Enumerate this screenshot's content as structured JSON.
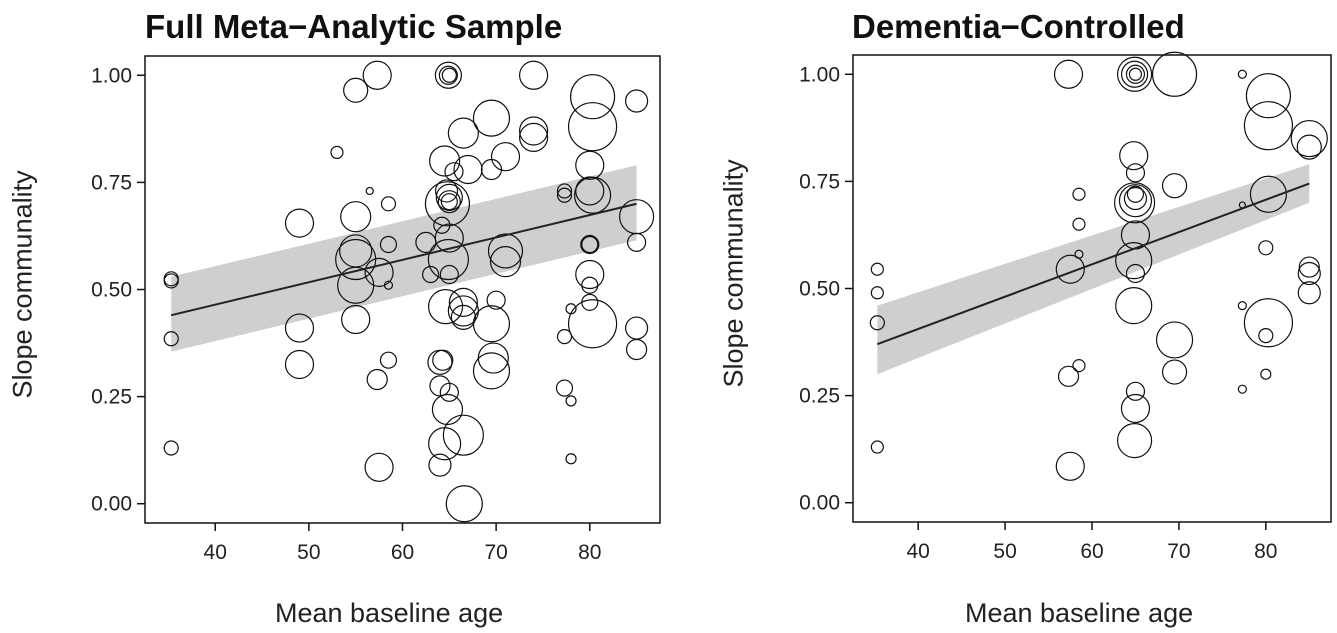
{
  "chart_data": [
    {
      "type": "scatter",
      "title": "Full Meta−Analytic Sample",
      "xlabel": "Mean baseline age",
      "ylabel": "Slope communality",
      "xlim": [
        32.5,
        87.5
      ],
      "ylim": [
        -0.045,
        1.045
      ],
      "xticks": [
        "40",
        "50",
        "60",
        "70",
        "80"
      ],
      "yticks": [
        "0.00",
        "0.25",
        "0.50",
        "0.75",
        "1.00"
      ],
      "grid": false,
      "legend": "none",
      "regression": {
        "x": [
          35.3,
          85
        ],
        "y": [
          0.44,
          0.7
        ],
        "ci_lower": [
          0.355,
          0.615
        ],
        "ci_upper": [
          0.53,
          0.79
        ]
      },
      "points": [
        {
          "x": 35.3,
          "y": 0.525,
          "w": 5
        },
        {
          "x": 35.3,
          "y": 0.52,
          "w": 5
        },
        {
          "x": 35.3,
          "y": 0.385,
          "w": 5
        },
        {
          "x": 35.3,
          "y": 0.13,
          "w": 5
        },
        {
          "x": 49,
          "y": 0.655,
          "w": 12
        },
        {
          "x": 49,
          "y": 0.41,
          "w": 12
        },
        {
          "x": 49,
          "y": 0.325,
          "w": 12
        },
        {
          "x": 53,
          "y": 0.82,
          "w": 4
        },
        {
          "x": 55,
          "y": 0.965,
          "w": 10
        },
        {
          "x": 55,
          "y": 0.67,
          "w": 13
        },
        {
          "x": 55,
          "y": 0.59,
          "w": 14
        },
        {
          "x": 55,
          "y": 0.57,
          "w": 18
        },
        {
          "x": 55,
          "y": 0.51,
          "w": 16
        },
        {
          "x": 55,
          "y": 0.43,
          "w": 12
        },
        {
          "x": 56.5,
          "y": 0.73,
          "w": 1.5
        },
        {
          "x": 57.3,
          "y": 1.0,
          "w": 12
        },
        {
          "x": 57.5,
          "y": 0.54,
          "w": 12
        },
        {
          "x": 57.3,
          "y": 0.29,
          "w": 8
        },
        {
          "x": 57.5,
          "y": 0.085,
          "w": 12
        },
        {
          "x": 58.5,
          "y": 0.7,
          "w": 5
        },
        {
          "x": 58.5,
          "y": 0.605,
          "w": 6
        },
        {
          "x": 58.5,
          "y": 0.51,
          "w": 2
        },
        {
          "x": 58.5,
          "y": 0.335,
          "w": 6
        },
        {
          "x": 62.5,
          "y": 0.61,
          "w": 8
        },
        {
          "x": 63,
          "y": 0.535,
          "w": 6
        },
        {
          "x": 64,
          "y": 0.33,
          "w": 10
        },
        {
          "x": 64,
          "y": 0.275,
          "w": 8
        },
        {
          "x": 64,
          "y": 0.09,
          "w": 9
        },
        {
          "x": 64.2,
          "y": 0.65,
          "w": 6
        },
        {
          "x": 64.3,
          "y": 0.335,
          "w": 8
        },
        {
          "x": 64.5,
          "y": 0.8,
          "w": 13
        },
        {
          "x": 64.5,
          "y": 0.14,
          "w": 14
        },
        {
          "x": 64.6,
          "y": 0.46,
          "w": 15
        },
        {
          "x": 64.7,
          "y": 0.73,
          "w": 9
        },
        {
          "x": 64.8,
          "y": 0.7,
          "w": 20
        },
        {
          "x": 64.9,
          "y": 0.57,
          "w": 18
        },
        {
          "x": 64.8,
          "y": 0.22,
          "w": 13
        },
        {
          "x": 64.9,
          "y": 1.0,
          "w": 11
        },
        {
          "x": 64.9,
          "y": 1.0,
          "w": 7
        },
        {
          "x": 65,
          "y": 1.0,
          "w": 5
        },
        {
          "x": 65,
          "y": 0.715,
          "w": 11
        },
        {
          "x": 65,
          "y": 0.705,
          "w": 9
        },
        {
          "x": 65,
          "y": 0.705,
          "w": 6
        },
        {
          "x": 65,
          "y": 0.62,
          "w": 12
        },
        {
          "x": 65,
          "y": 0.535,
          "w": 7
        },
        {
          "x": 65,
          "y": 0.26,
          "w": 7
        },
        {
          "x": 65.5,
          "y": 0.775,
          "w": 7
        },
        {
          "x": 66.5,
          "y": 0.865,
          "w": 13
        },
        {
          "x": 66.5,
          "y": 0.47,
          "w": 12
        },
        {
          "x": 66.5,
          "y": 0.45,
          "w": 13
        },
        {
          "x": 66.5,
          "y": 0.435,
          "w": 10
        },
        {
          "x": 66.5,
          "y": 0.16,
          "w": 18
        },
        {
          "x": 66.6,
          "y": 0.0,
          "w": 16
        },
        {
          "x": 67,
          "y": 0.78,
          "w": 12
        },
        {
          "x": 69.5,
          "y": 0.9,
          "w": 16
        },
        {
          "x": 69.5,
          "y": 0.42,
          "w": 16
        },
        {
          "x": 69.5,
          "y": 0.31,
          "w": 16
        },
        {
          "x": 69.5,
          "y": 0.78,
          "w": 8
        },
        {
          "x": 69.7,
          "y": 0.34,
          "w": 13
        },
        {
          "x": 70,
          "y": 0.475,
          "w": 7
        },
        {
          "x": 71,
          "y": 0.81,
          "w": 12
        },
        {
          "x": 71,
          "y": 0.59,
          "w": 15
        },
        {
          "x": 71,
          "y": 0.565,
          "w": 13
        },
        {
          "x": 74,
          "y": 1.0,
          "w": 12
        },
        {
          "x": 74,
          "y": 0.87,
          "w": 12
        },
        {
          "x": 74,
          "y": 0.855,
          "w": 12
        },
        {
          "x": 77.3,
          "y": 0.73,
          "w": 5
        },
        {
          "x": 77.3,
          "y": 0.72,
          "w": 5
        },
        {
          "x": 77.3,
          "y": 0.39,
          "w": 5
        },
        {
          "x": 77.3,
          "y": 0.27,
          "w": 6
        },
        {
          "x": 78,
          "y": 0.455,
          "w": 3
        },
        {
          "x": 78,
          "y": 0.24,
          "w": 3
        },
        {
          "x": 78,
          "y": 0.105,
          "w": 3
        },
        {
          "x": 80,
          "y": 0.79,
          "w": 12
        },
        {
          "x": 80,
          "y": 0.73,
          "w": 12
        },
        {
          "x": 80,
          "y": 0.605,
          "w": 6
        },
        {
          "x": 80,
          "y": 0.605,
          "w": 7
        },
        {
          "x": 80,
          "y": 0.535,
          "w": 12
        },
        {
          "x": 80,
          "y": 0.51,
          "w": 6
        },
        {
          "x": 80,
          "y": 0.47,
          "w": 6
        },
        {
          "x": 80.3,
          "y": 0.95,
          "w": 20
        },
        {
          "x": 80.3,
          "y": 0.88,
          "w": 22
        },
        {
          "x": 80.3,
          "y": 0.72,
          "w": 16
        },
        {
          "x": 80.3,
          "y": 0.42,
          "w": 22
        },
        {
          "x": 85,
          "y": 0.94,
          "w": 9
        },
        {
          "x": 85,
          "y": 0.67,
          "w": 15
        },
        {
          "x": 85,
          "y": 0.61,
          "w": 7
        },
        {
          "x": 85,
          "y": 0.41,
          "w": 9
        },
        {
          "x": 85,
          "y": 0.36,
          "w": 8
        }
      ]
    },
    {
      "type": "scatter",
      "title": "Dementia−Controlled",
      "xlabel": "Mean baseline age",
      "ylabel": "Slope communality",
      "xlim": [
        32.5,
        87.5
      ],
      "ylim": [
        -0.045,
        1.045
      ],
      "xticks": [
        "40",
        "50",
        "60",
        "70",
        "80"
      ],
      "yticks": [
        "0.00",
        "0.25",
        "0.50",
        "0.75",
        "1.00"
      ],
      "grid": false,
      "legend": "none",
      "regression": {
        "x": [
          35.3,
          85
        ],
        "y": [
          0.37,
          0.745
        ],
        "ci_lower": [
          0.3,
          0.7
        ],
        "ci_upper": [
          0.46,
          0.79
        ]
      },
      "points": [
        {
          "x": 35.3,
          "y": 0.545,
          "w": 4
        },
        {
          "x": 35.3,
          "y": 0.49,
          "w": 4
        },
        {
          "x": 35.3,
          "y": 0.42,
          "w": 5
        },
        {
          "x": 35.3,
          "y": 0.13,
          "w": 4
        },
        {
          "x": 57.3,
          "y": 1.0,
          "w": 12
        },
        {
          "x": 57.5,
          "y": 0.545,
          "w": 12
        },
        {
          "x": 57.3,
          "y": 0.295,
          "w": 8
        },
        {
          "x": 57.5,
          "y": 0.085,
          "w": 12
        },
        {
          "x": 58.5,
          "y": 0.72,
          "w": 4
        },
        {
          "x": 58.5,
          "y": 0.65,
          "w": 4
        },
        {
          "x": 58.5,
          "y": 0.58,
          "w": 2
        },
        {
          "x": 58.5,
          "y": 0.32,
          "w": 4
        },
        {
          "x": 64.9,
          "y": 1.0,
          "w": 15
        },
        {
          "x": 64.9,
          "y": 1.0,
          "w": 11
        },
        {
          "x": 65,
          "y": 1.0,
          "w": 7
        },
        {
          "x": 65,
          "y": 1.0,
          "w": 4
        },
        {
          "x": 64.8,
          "y": 0.81,
          "w": 12
        },
        {
          "x": 65,
          "y": 0.77,
          "w": 7
        },
        {
          "x": 64.9,
          "y": 0.7,
          "w": 18
        },
        {
          "x": 65,
          "y": 0.705,
          "w": 14
        },
        {
          "x": 65,
          "y": 0.71,
          "w": 9
        },
        {
          "x": 65,
          "y": 0.72,
          "w": 6
        },
        {
          "x": 65,
          "y": 0.625,
          "w": 12
        },
        {
          "x": 64.8,
          "y": 0.565,
          "w": 16
        },
        {
          "x": 65,
          "y": 0.535,
          "w": 7
        },
        {
          "x": 64.8,
          "y": 0.46,
          "w": 16
        },
        {
          "x": 65,
          "y": 0.26,
          "w": 7
        },
        {
          "x": 65,
          "y": 0.22,
          "w": 12
        },
        {
          "x": 64.9,
          "y": 0.145,
          "w": 15
        },
        {
          "x": 69.5,
          "y": 1.0,
          "w": 20
        },
        {
          "x": 69.5,
          "y": 0.74,
          "w": 10
        },
        {
          "x": 69.5,
          "y": 0.38,
          "w": 16
        },
        {
          "x": 69.5,
          "y": 0.305,
          "w": 10
        },
        {
          "x": 77.3,
          "y": 1.0,
          "w": 2
        },
        {
          "x": 77.3,
          "y": 0.695,
          "w": 1
        },
        {
          "x": 77.3,
          "y": 0.46,
          "w": 2
        },
        {
          "x": 77.3,
          "y": 0.265,
          "w": 2
        },
        {
          "x": 80.3,
          "y": 0.95,
          "w": 20
        },
        {
          "x": 80.3,
          "y": 0.88,
          "w": 22
        },
        {
          "x": 80.3,
          "y": 0.72,
          "w": 16
        },
        {
          "x": 80.3,
          "y": 0.42,
          "w": 22
        },
        {
          "x": 80,
          "y": 0.595,
          "w": 5
        },
        {
          "x": 80,
          "y": 0.39,
          "w": 5
        },
        {
          "x": 80,
          "y": 0.3,
          "w": 3
        },
        {
          "x": 85,
          "y": 0.85,
          "w": 16
        },
        {
          "x": 85,
          "y": 0.83,
          "w": 10
        },
        {
          "x": 85,
          "y": 0.55,
          "w": 8
        },
        {
          "x": 85,
          "y": 0.535,
          "w": 9
        },
        {
          "x": 85,
          "y": 0.49,
          "w": 9
        }
      ]
    }
  ]
}
